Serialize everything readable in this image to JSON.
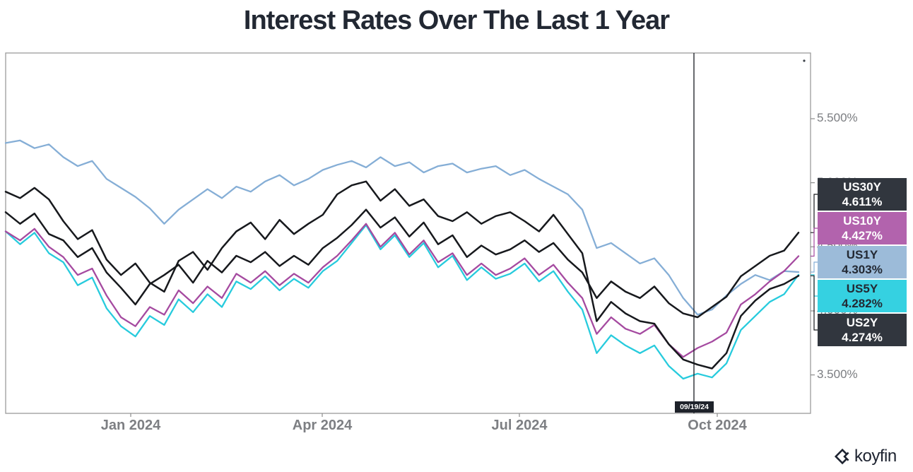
{
  "title": "Interest Rates Over The Last 1 Year",
  "crosshair": {
    "date_label": "09/19/24"
  },
  "x_axis": {
    "ticks": [
      "Jan 2024",
      "Apr 2024",
      "Jul 2024",
      "Oct 2024"
    ]
  },
  "y_axis": {
    "ticks": [
      "5.500%",
      "5.000%",
      "4.500%",
      "4.000%",
      "3.500%"
    ]
  },
  "branding": {
    "name": "koyfin"
  },
  "chart_data": {
    "type": "line",
    "title": "Interest Rates Over The Last 1 Year",
    "x_start": "Nov 2023",
    "x_end": "Nov 2024",
    "x_tick_labels": [
      "Jan 2024",
      "Apr 2024",
      "Jul 2024",
      "Oct 2024"
    ],
    "y_tick_values": [
      5.5,
      5.0,
      4.5,
      4.0,
      3.5
    ],
    "y_tick_labels": [
      "5.500%",
      "5.000%",
      "4.500%",
      "4.000%",
      "3.500%"
    ],
    "ylim": [
      3.2,
      6.0
    ],
    "grid": false,
    "legend_position": "right-badges",
    "crosshair_date": "09/19/24",
    "series": [
      {
        "name": "US30Y",
        "last_label": "4.611%",
        "last_value": 4.611,
        "color": "#17191d",
        "badge_bg": "#31363e",
        "badge_fg": "#ffffff",
        "values": [
          4.77,
          4.68,
          4.76,
          4.6,
          4.55,
          4.42,
          4.49,
          4.3,
          4.18,
          4.05,
          4.21,
          4.28,
          4.36,
          4.22,
          4.39,
          4.3,
          4.43,
          4.38,
          4.46,
          4.35,
          4.43,
          4.36,
          4.49,
          4.57,
          4.67,
          4.79,
          4.65,
          4.73,
          4.58,
          4.69,
          4.52,
          4.59,
          4.42,
          4.51,
          4.44,
          4.48,
          4.55,
          4.46,
          4.53,
          4.4,
          4.3,
          4.1,
          4.23,
          4.15,
          4.1,
          4.19,
          4.06,
          3.98,
          3.95,
          4.03,
          4.11,
          4.27,
          4.35,
          4.43,
          4.47,
          4.611
        ]
      },
      {
        "name": "US10Y",
        "last_label": "4.427%",
        "last_value": 4.427,
        "color": "#a54aa0",
        "badge_bg": "#b263ad",
        "badge_fg": "#ffffff",
        "values": [
          4.62,
          4.55,
          4.64,
          4.5,
          4.42,
          4.28,
          4.33,
          4.12,
          3.95,
          3.88,
          4.03,
          3.97,
          4.16,
          4.06,
          4.19,
          4.1,
          4.29,
          4.22,
          4.31,
          4.2,
          4.29,
          4.22,
          4.34,
          4.43,
          4.55,
          4.68,
          4.5,
          4.61,
          4.44,
          4.55,
          4.38,
          4.45,
          4.28,
          4.37,
          4.28,
          4.33,
          4.41,
          4.28,
          4.36,
          4.22,
          4.1,
          3.82,
          3.95,
          3.86,
          3.82,
          3.89,
          3.74,
          3.64,
          3.71,
          3.76,
          3.83,
          4.05,
          4.13,
          4.23,
          4.31,
          4.427
        ]
      },
      {
        "name": "US1Y",
        "last_label": "4.303%",
        "last_value": 4.303,
        "color": "#85aed6",
        "badge_bg": "#9cbbd9",
        "badge_fg": "#232933",
        "values": [
          5.31,
          5.33,
          5.27,
          5.3,
          5.2,
          5.13,
          5.17,
          5.03,
          4.96,
          4.89,
          4.8,
          4.68,
          4.79,
          4.87,
          4.95,
          4.88,
          4.97,
          4.93,
          5.01,
          5.06,
          4.98,
          5.03,
          5.1,
          5.14,
          5.17,
          5.12,
          5.2,
          5.13,
          5.16,
          5.08,
          5.13,
          5.15,
          5.08,
          5.11,
          5.13,
          5.06,
          5.1,
          5.03,
          4.97,
          4.91,
          4.79,
          4.49,
          4.53,
          4.45,
          4.37,
          4.41,
          4.28,
          4.1,
          3.97,
          4.01,
          4.12,
          4.21,
          4.28,
          4.24,
          4.31,
          4.303
        ]
      },
      {
        "name": "US5Y",
        "last_label": "4.282%",
        "last_value": 4.282,
        "color": "#27cbdd",
        "badge_bg": "#35d1e1",
        "badge_fg": "#232933",
        "values": [
          4.62,
          4.52,
          4.61,
          4.45,
          4.38,
          4.2,
          4.26,
          4.02,
          3.88,
          3.8,
          3.96,
          3.89,
          4.09,
          3.99,
          4.13,
          4.03,
          4.23,
          4.17,
          4.27,
          4.16,
          4.25,
          4.18,
          4.31,
          4.39,
          4.53,
          4.67,
          4.48,
          4.59,
          4.42,
          4.53,
          4.34,
          4.43,
          4.24,
          4.34,
          4.25,
          4.29,
          4.37,
          4.23,
          4.31,
          4.15,
          4.01,
          3.67,
          3.81,
          3.73,
          3.67,
          3.73,
          3.57,
          3.47,
          3.51,
          3.48,
          3.59,
          3.85,
          3.96,
          4.07,
          4.13,
          4.282
        ]
      },
      {
        "name": "US2Y",
        "last_label": "4.274%",
        "last_value": 4.274,
        "color": "#17191d",
        "badge_bg": "#31363e",
        "badge_fg": "#ffffff",
        "values": [
          4.93,
          4.88,
          4.96,
          4.87,
          4.7,
          4.56,
          4.63,
          4.4,
          4.28,
          4.37,
          4.22,
          4.15,
          4.39,
          4.46,
          4.32,
          4.49,
          4.62,
          4.69,
          4.56,
          4.71,
          4.6,
          4.68,
          4.75,
          4.91,
          4.98,
          5.01,
          4.86,
          4.95,
          4.82,
          4.87,
          4.74,
          4.7,
          4.77,
          4.68,
          4.74,
          4.77,
          4.7,
          4.62,
          4.75,
          4.6,
          4.45,
          3.92,
          4.07,
          3.98,
          3.92,
          3.9,
          3.74,
          3.62,
          3.58,
          3.55,
          3.67,
          3.96,
          4.08,
          4.17,
          4.21,
          4.274
        ]
      }
    ]
  }
}
